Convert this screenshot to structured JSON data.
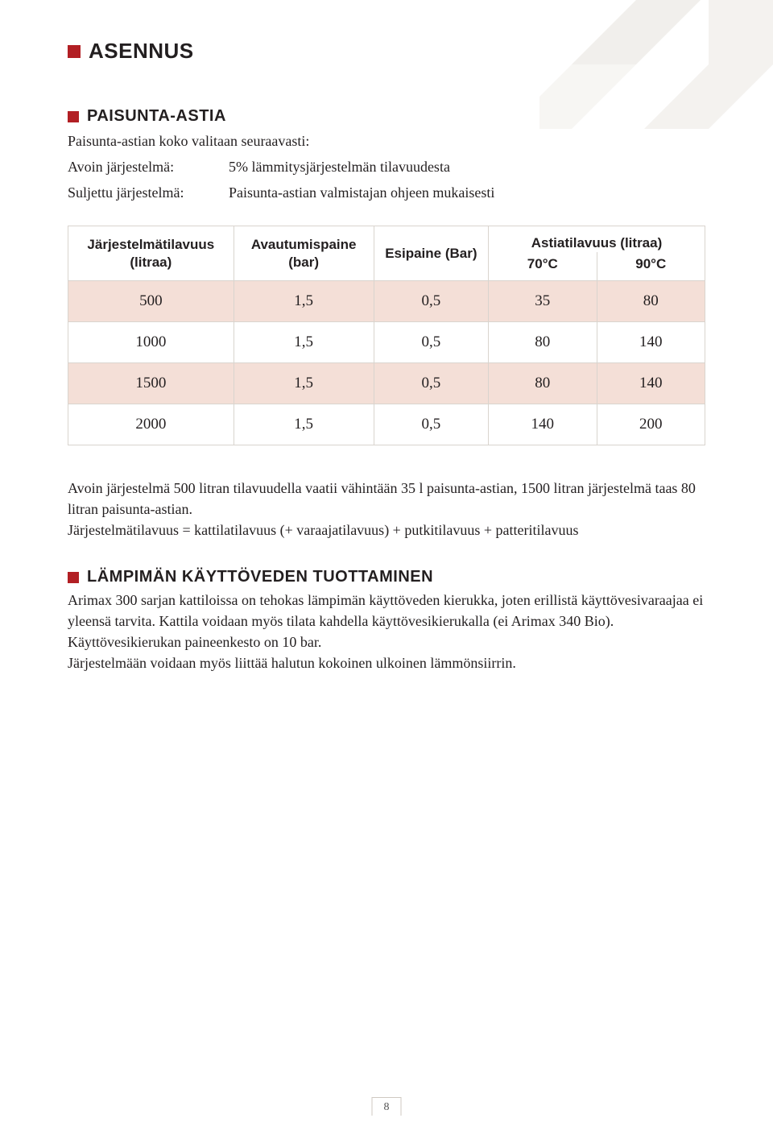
{
  "bg": {
    "shape_color": "#f1efec"
  },
  "section_title": "ASENNUS",
  "sec1": {
    "title": "PAISUNTA-ASTIA",
    "intro_line": "Paisunta-astian koko valitaan seuraavasti:",
    "rows": [
      {
        "label": "Avoin järjestelmä:",
        "text": "5% lämmitysjärjestelmän tilavuudesta"
      },
      {
        "label": "Suljettu järjestelmä:",
        "text": "Paisunta-astian valmistajan ohjeen mukaisesti"
      }
    ]
  },
  "table": {
    "headers": {
      "col1": "Järjestelmätilavuus (litraa)",
      "col2": "Avautumispaine (bar)",
      "col3": "Esipaine (Bar)",
      "col4_top": "Astiatilavuus (litraa)",
      "col4_a": "70°C",
      "col4_b": "90°C"
    },
    "rows": [
      {
        "c1": "500",
        "c2": "1,5",
        "c3": "0,5",
        "c4": "35",
        "c5": "80",
        "tint": true
      },
      {
        "c1": "1000",
        "c2": "1,5",
        "c3": "0,5",
        "c4": "80",
        "c5": "140",
        "tint": false
      },
      {
        "c1": "1500",
        "c2": "1,5",
        "c3": "0,5",
        "c4": "80",
        "c5": "140",
        "tint": true
      },
      {
        "c1": "2000",
        "c2": "1,5",
        "c3": "0,5",
        "c4": "140",
        "c5": "200",
        "tint": false
      }
    ],
    "col_widths": [
      "26%",
      "22%",
      "18%",
      "17%",
      "17%"
    ],
    "tint_color": "#f4dfd7",
    "border_color": "#d9d4ce"
  },
  "para1": {
    "l1": "Avoin järjestelmä 500 litran tilavuudella vaatii vähintään 35 l paisunta-astian, 1500 litran järjestelmä taas 80 litran paisunta-astian.",
    "l2": "Järjestelmätilavuus = kattilatilavuus (+ varaajatilavuus) + putkitilavuus + patteritilavuus"
  },
  "sec2": {
    "title": "LÄMPIMÄN KÄYTTÖVEDEN TUOTTAMINEN",
    "body": "Arimax 300 sarjan kattiloissa on tehokas lämpimän käyttöveden kierukka, joten erillistä käyttövesivaraajaa ei yleensä tarvita. Kattila voidaan myös tilata kahdella käyttövesikierukalla (ei Arimax 340 Bio). Käyttövesikierukan paineenkesto on 10 bar.",
    "body2": "Järjestelmään voidaan myös liittää halutun kokoinen ulkoinen lämmönsiirrin."
  },
  "page_number": "8",
  "accent_color": "#b21f24"
}
